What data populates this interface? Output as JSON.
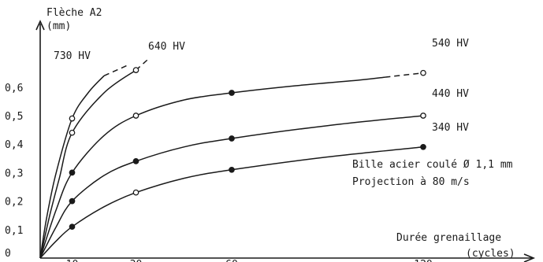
{
  "chart_data": {
    "type": "line",
    "title": "",
    "ylabel": "Flèche A2",
    "ylabel_unit": "(mm)",
    "xlabel": "Durée grenaillage",
    "xlabel_unit": "(cycles)",
    "origin_label": "0",
    "xlim": [
      0,
      125
    ],
    "ylim": [
      0,
      0.7
    ],
    "y_ticks": [
      {
        "value": 0.1,
        "label": "0,1"
      },
      {
        "value": 0.2,
        "label": "0,2"
      },
      {
        "value": 0.3,
        "label": "0,3"
      },
      {
        "value": 0.4,
        "label": "0,4"
      },
      {
        "value": 0.5,
        "label": "0,5"
      },
      {
        "value": 0.6,
        "label": "0,6"
      }
    ],
    "x_ticks": [
      {
        "value": 10,
        "label": "10"
      },
      {
        "value": 30,
        "label": "30"
      },
      {
        "value": 60,
        "label": "60"
      },
      {
        "value": 120,
        "label": "120"
      }
    ],
    "annotations": [
      "Bille acier coulé Ø 1,1 mm",
      "Projection à 80 m/s"
    ],
    "series": [
      {
        "name": "730 HV",
        "marker": "open",
        "points": [
          {
            "x": 10,
            "y": 0.49
          }
        ],
        "curve": [
          [
            0,
            0.0
          ],
          [
            2,
            0.14
          ],
          [
            5,
            0.3
          ],
          [
            10,
            0.49
          ],
          [
            15,
            0.58
          ],
          [
            20,
            0.64
          ]
        ],
        "dashed": [
          [
            20,
            0.64
          ],
          [
            28,
            0.68
          ]
        ]
      },
      {
        "name": "640 HV",
        "marker": "open",
        "points": [
          {
            "x": 10,
            "y": 0.44
          },
          {
            "x": 30,
            "y": 0.66
          }
        ],
        "curve": [
          [
            0,
            0.0
          ],
          [
            3,
            0.15
          ],
          [
            6,
            0.28
          ],
          [
            10,
            0.44
          ],
          [
            20,
            0.58
          ],
          [
            30,
            0.66
          ]
        ],
        "dashed": [
          [
            30,
            0.66
          ],
          [
            34,
            0.7
          ]
        ]
      },
      {
        "name": "540 HV",
        "marker": "mixed",
        "points": [
          {
            "x": 10,
            "y": 0.3,
            "filled": true
          },
          {
            "x": 30,
            "y": 0.5,
            "filled": false
          },
          {
            "x": 60,
            "y": 0.58,
            "filled": true
          },
          {
            "x": 120,
            "y": 0.65,
            "filled": false
          }
        ],
        "curve": [
          [
            0,
            0.0
          ],
          [
            5,
            0.17
          ],
          [
            10,
            0.3
          ],
          [
            20,
            0.43
          ],
          [
            30,
            0.5
          ],
          [
            45,
            0.555
          ],
          [
            60,
            0.58
          ],
          [
            80,
            0.605
          ],
          [
            100,
            0.625
          ],
          [
            108,
            0.635
          ]
        ],
        "dashed": [
          [
            108,
            0.635
          ],
          [
            120,
            0.65
          ]
        ]
      },
      {
        "name": "440 HV",
        "marker": "mixed",
        "points": [
          {
            "x": 10,
            "y": 0.2,
            "filled": true
          },
          {
            "x": 30,
            "y": 0.34,
            "filled": true
          },
          {
            "x": 60,
            "y": 0.42,
            "filled": true
          },
          {
            "x": 120,
            "y": 0.5,
            "filled": false
          }
        ],
        "curve": [
          [
            0,
            0.0
          ],
          [
            5,
            0.11
          ],
          [
            10,
            0.2
          ],
          [
            20,
            0.29
          ],
          [
            30,
            0.34
          ],
          [
            45,
            0.39
          ],
          [
            60,
            0.42
          ],
          [
            90,
            0.465
          ],
          [
            120,
            0.5
          ]
        ],
        "dashed": []
      },
      {
        "name": "340 HV",
        "marker": "mixed",
        "points": [
          {
            "x": 10,
            "y": 0.11,
            "filled": true
          },
          {
            "x": 30,
            "y": 0.23,
            "filled": false
          },
          {
            "x": 60,
            "y": 0.31,
            "filled": true
          },
          {
            "x": 120,
            "y": 0.39,
            "filled": true
          }
        ],
        "curve": [
          [
            0,
            0.0
          ],
          [
            5,
            0.06
          ],
          [
            10,
            0.11
          ],
          [
            20,
            0.18
          ],
          [
            30,
            0.23
          ],
          [
            45,
            0.28
          ],
          [
            60,
            0.31
          ],
          [
            90,
            0.355
          ],
          [
            120,
            0.39
          ]
        ],
        "dashed": []
      }
    ]
  }
}
